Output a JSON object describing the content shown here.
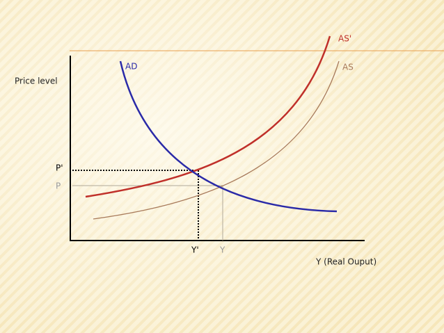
{
  "y_axis_label": "Price level",
  "x_axis_label": "Y (Real Ouput)",
  "curves": {
    "ad": "AD",
    "as_shifted": "AS'",
    "as": "AS"
  },
  "price_levels": {
    "shifted": "P'",
    "original": "P"
  },
  "outputs": {
    "shifted": "Y'",
    "original": "Y"
  }
}
